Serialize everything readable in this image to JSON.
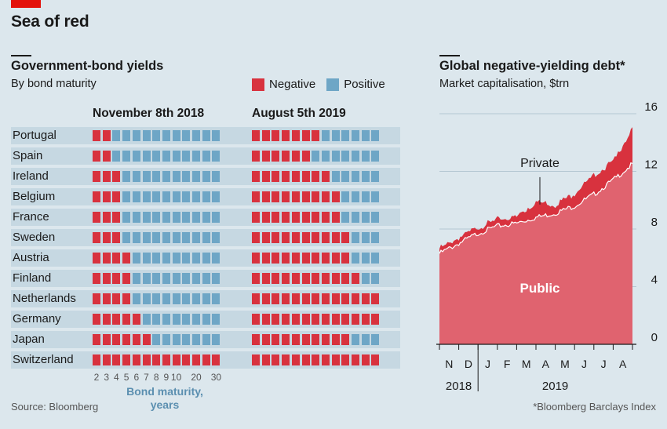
{
  "header": {
    "title": "Sea of red"
  },
  "colors": {
    "negative": "#d8323e",
    "positive": "#6ea6c6",
    "bg": "#dce7ed",
    "row_band": "#c6d8e2",
    "public_area": "#e0636f",
    "private_area": "#d8323e"
  },
  "chart_data": [
    {
      "type": "heatmap",
      "title": "Government-bond yields",
      "subtitle": "By bond maturity",
      "legend": [
        "Negative",
        "Positive"
      ],
      "panels": [
        "November 8th 2018",
        "August 5th 2019"
      ],
      "xlabel": "Bond maturity, years",
      "maturities": [
        "2",
        "3",
        "4",
        "5",
        "6",
        "7",
        "8",
        "9",
        "10",
        "",
        "20",
        "",
        "30"
      ],
      "tick_labels": [
        "2",
        "3",
        "4",
        "5",
        "6",
        "7",
        "8",
        "9",
        "10",
        "20",
        "30"
      ],
      "rows": [
        {
          "country": "Portugal",
          "neg_2018": 2,
          "neg_2019": 7
        },
        {
          "country": "Spain",
          "neg_2018": 2,
          "neg_2019": 6
        },
        {
          "country": "Ireland",
          "neg_2018": 3,
          "neg_2019": 8
        },
        {
          "country": "Belgium",
          "neg_2018": 3,
          "neg_2019": 9
        },
        {
          "country": "France",
          "neg_2018": 3,
          "neg_2019": 9
        },
        {
          "country": "Sweden",
          "neg_2018": 3,
          "neg_2019": 10
        },
        {
          "country": "Austria",
          "neg_2018": 4,
          "neg_2019": 10
        },
        {
          "country": "Finland",
          "neg_2018": 4,
          "neg_2019": 11
        },
        {
          "country": "Netherlands",
          "neg_2018": 4,
          "neg_2019": 13
        },
        {
          "country": "Germany",
          "neg_2018": 5,
          "neg_2019": 13
        },
        {
          "country": "Japan",
          "neg_2018": 6,
          "neg_2019": 10
        },
        {
          "country": "Switzerland",
          "neg_2018": 13,
          "neg_2019": 13
        }
      ],
      "source": "Source: Bloomberg"
    },
    {
      "type": "area",
      "title": "Global negative-yielding debt*",
      "subtitle": "Market capitalisation, $trn",
      "ylim": [
        0,
        16
      ],
      "yticks": [
        "0",
        "4",
        "8",
        "12",
        "16"
      ],
      "months": [
        "N",
        "D",
        "J",
        "F",
        "M",
        "A",
        "M",
        "J",
        "J",
        "A"
      ],
      "years": [
        "2018",
        "2019"
      ],
      "x": [
        "2018-10",
        "2018-11",
        "2018-12",
        "2019-01",
        "2019-02",
        "2019-03",
        "2019-04",
        "2019-05",
        "2019-06",
        "2019-07",
        "2019-08"
      ],
      "series": [
        {
          "name": "Public",
          "values": [
            6.3,
            7.0,
            7.7,
            8.2,
            8.4,
            8.8,
            9.1,
            9.6,
            10.4,
            11.4,
            12.5
          ]
        },
        {
          "name": "Private",
          "values": [
            6.6,
            7.3,
            8.0,
            8.6,
            8.8,
            9.8,
            9.6,
            10.4,
            11.6,
            12.6,
            14.9
          ]
        }
      ],
      "annotations": [
        "Private",
        "Public"
      ],
      "footnote": "*Bloomberg Barclays Index"
    }
  ]
}
